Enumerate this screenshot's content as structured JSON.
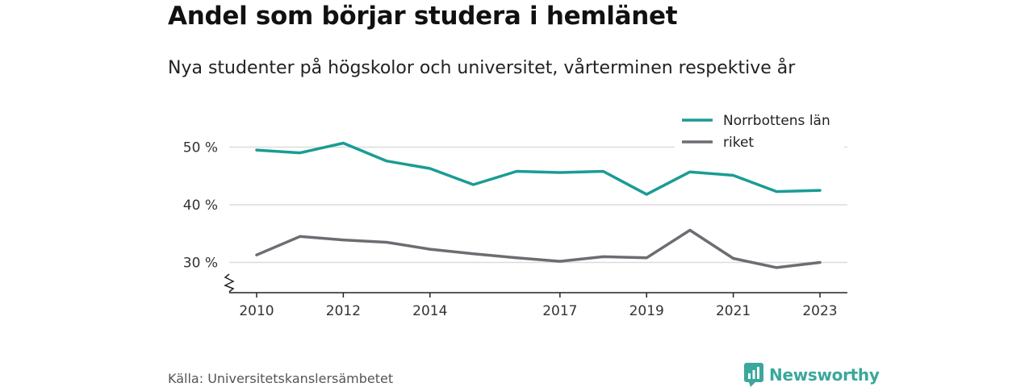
{
  "title": "Andel som börjar studera i hemlänet",
  "subtitle": "Nya studenter på högskolor och universitet, vårterminen respektive år",
  "source": "Källa: Universitetskanslersämbetet",
  "brand": {
    "name": "Newsworthy",
    "icon": "newsworthy-logo-icon",
    "color": "#3aa89b"
  },
  "chart_data": {
    "type": "line",
    "title": "Andel som börjar studera i hemlänet",
    "subtitle": "Nya studenter på högskolor och universitet, vårterminen respektive år",
    "x": [
      2010,
      2011,
      2012,
      2013,
      2014,
      2015,
      2016,
      2017,
      2018,
      2019,
      2020,
      2021,
      2022,
      2023
    ],
    "x_ticks": [
      2010,
      2012,
      2014,
      2017,
      2019,
      2021,
      2023
    ],
    "y_ticks": [
      30,
      40,
      50
    ],
    "y_tick_labels": [
      "30 %",
      "40 %",
      "50 %"
    ],
    "ylim": [
      25,
      52
    ],
    "y_axis_break": true,
    "grid": true,
    "legend_position": "top-right",
    "series": [
      {
        "name": "Norrbottens län",
        "color": "#1a9c94",
        "values": [
          49.5,
          49.0,
          50.7,
          47.6,
          46.3,
          43.5,
          45.8,
          45.6,
          45.8,
          41.8,
          45.7,
          45.1,
          42.3,
          42.5
        ]
      },
      {
        "name": "riket",
        "color": "#6d6c72",
        "values": [
          31.3,
          34.5,
          33.9,
          33.5,
          32.3,
          31.5,
          30.8,
          30.2,
          31.0,
          30.8,
          35.6,
          30.7,
          29.1,
          30.0
        ]
      }
    ]
  }
}
